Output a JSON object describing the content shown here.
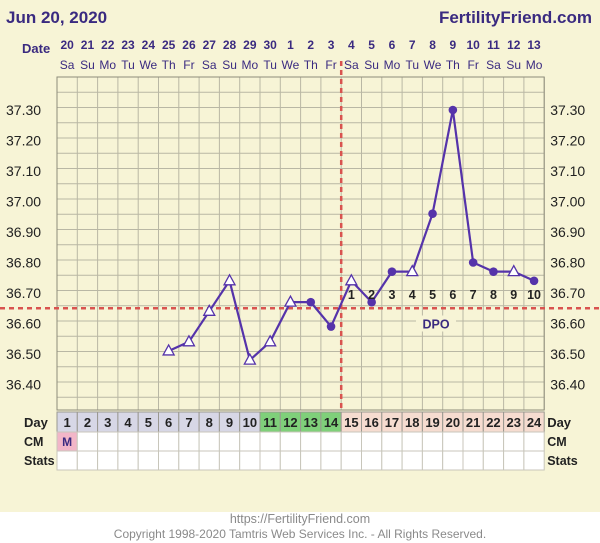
{
  "header": {
    "date_title": "Jun 20, 2020",
    "brand": "FertilityFriend.com"
  },
  "labels": {
    "date_row": "Date",
    "day_row": "Day",
    "cm_row": "CM",
    "stats_row": "Stats",
    "dpo": "DPO"
  },
  "footer": {
    "url": "https://FertilityFriend.com",
    "copyright": "Copyright 1998-2020 Tamtris Web Services Inc. - All Rights Reserved."
  },
  "colors": {
    "background": "#f7f4d6",
    "grid": "#b9b7a4",
    "line": "#5533aa",
    "coverline": "#d9534f",
    "fertile_cells": "#7fd07a",
    "post_ovulation_cells": "#f6dcd0",
    "pre_cells": "#d7d7e6",
    "cm_highlight": "#f2b6c8"
  },
  "chart_data": {
    "type": "line",
    "dates": [
      "20",
      "21",
      "22",
      "23",
      "24",
      "25",
      "26",
      "27",
      "28",
      "29",
      "30",
      "1",
      "2",
      "3",
      "4",
      "5",
      "6",
      "7",
      "8",
      "9",
      "10",
      "11",
      "12",
      "13"
    ],
    "weekdays": [
      "Sa",
      "Su",
      "Mo",
      "Tu",
      "We",
      "Th",
      "Fr",
      "Sa",
      "Su",
      "Mo",
      "Tu",
      "We",
      "Th",
      "Fr",
      "Sa",
      "Su",
      "Mo",
      "Tu",
      "We",
      "Th",
      "Fr",
      "Sa",
      "Su",
      "Mo"
    ],
    "cycle_days": [
      "1",
      "2",
      "3",
      "4",
      "5",
      "6",
      "7",
      "8",
      "9",
      "10",
      "11",
      "12",
      "13",
      "14",
      "15",
      "16",
      "17",
      "18",
      "19",
      "20",
      "21",
      "22",
      "23",
      "24"
    ],
    "day_cell_types": [
      "pre",
      "pre",
      "pre",
      "pre",
      "pre",
      "pre",
      "pre",
      "pre",
      "pre",
      "pre",
      "fertile",
      "fertile",
      "fertile",
      "fertile",
      "post",
      "post",
      "post",
      "post",
      "post",
      "post",
      "post",
      "post",
      "post",
      "post"
    ],
    "cm": [
      "M",
      "",
      "",
      "",
      "",
      "",
      "",
      "",
      "",
      "",
      "",
      "",
      "",
      "",
      "",
      "",
      "",
      "",
      "",
      "",
      "",
      "",
      "",
      ""
    ],
    "temperatures": [
      null,
      null,
      null,
      null,
      null,
      36.51,
      36.54,
      36.64,
      36.74,
      36.48,
      36.54,
      36.67,
      36.67,
      36.59,
      36.74,
      36.67,
      36.77,
      36.77,
      36.96,
      37.3,
      36.8,
      36.77,
      36.77,
      36.74
    ],
    "markers": [
      null,
      null,
      null,
      null,
      null,
      "open",
      "open",
      "open",
      "open",
      "open",
      "open",
      "open",
      "filled",
      "filled",
      "open",
      "filled",
      "filled",
      "open",
      "filled",
      "filled",
      "filled",
      "filled",
      "open",
      "filled"
    ],
    "dpo_labels": [
      "",
      "",
      "",
      "",
      "",
      "",
      "",
      "",
      "",
      "",
      "",
      "",
      "",
      "",
      "1",
      "2",
      "3",
      "4",
      "5",
      "6",
      "7",
      "8",
      "9",
      "10"
    ],
    "y_ticks": [
      "37.30",
      "37.20",
      "37.10",
      "37.00",
      "36.90",
      "36.80",
      "36.70",
      "36.60",
      "36.50",
      "36.40"
    ],
    "ylim": [
      36.3,
      37.4
    ],
    "coverline": 36.65,
    "ovulation_day": 14,
    "grid": true
  }
}
